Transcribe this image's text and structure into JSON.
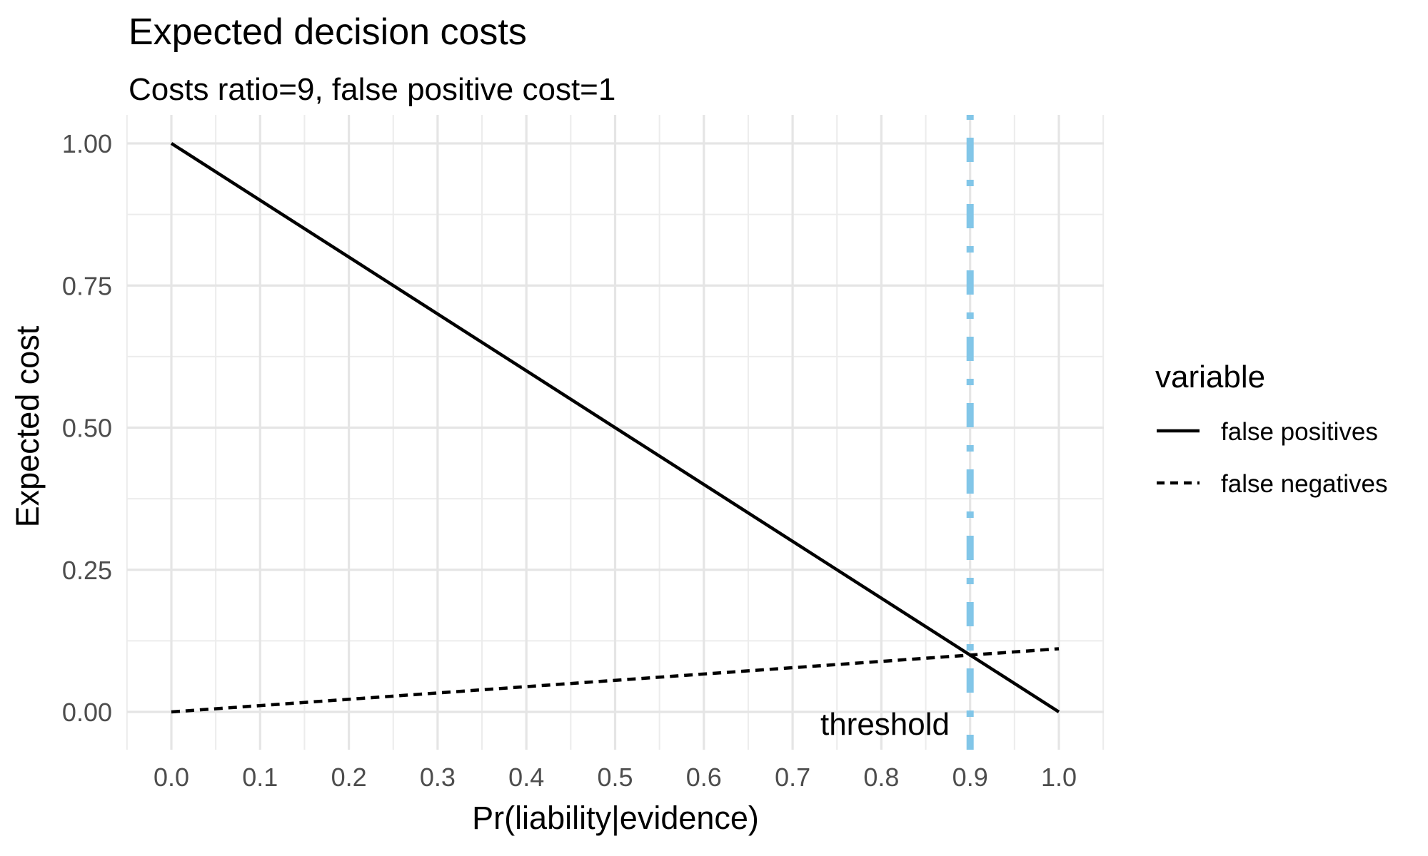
{
  "colors": {
    "series_line": "#000000",
    "threshold_line": "#82C6E8",
    "grid_major": "#E5E5E5",
    "grid_minor": "#ECECEC",
    "tick_text": "#4D4D4D",
    "title_text": "#000000",
    "background": "#FFFFFF"
  },
  "chart_data": {
    "type": "line",
    "title": "Expected decision costs",
    "subtitle": "Costs ratio=9, false positive cost=1",
    "xlabel": "Pr(liability|evidence)",
    "ylabel": "Expected cost",
    "xlim": [
      -0.05,
      1.05
    ],
    "ylim": [
      -0.065,
      1.05
    ],
    "grid": "major and minor, light gray on white (ggplot theme_minimal)",
    "x_ticks": {
      "values": [
        0.0,
        0.1,
        0.2,
        0.3,
        0.4,
        0.5,
        0.6,
        0.7,
        0.8,
        0.9,
        1.0
      ],
      "labels": [
        "0.0",
        "0.1",
        "0.2",
        "0.3",
        "0.4",
        "0.5",
        "0.6",
        "0.7",
        "0.8",
        "0.9",
        "1.0"
      ]
    },
    "y_ticks": {
      "values": [
        0.0,
        0.25,
        0.5,
        0.75,
        1.0
      ],
      "labels": [
        "0.00",
        "0.25",
        "0.50",
        "0.75",
        "1.00"
      ]
    },
    "legend_title": "variable",
    "legend_position": "right",
    "series": [
      {
        "name": "false positives",
        "style": "solid",
        "color": "#000000",
        "points": [
          [
            0.0,
            1.0
          ],
          [
            1.0,
            0.0
          ]
        ]
      },
      {
        "name": "false negatives",
        "style": "dashed",
        "color": "#000000",
        "points": [
          [
            0.0,
            0.0
          ],
          [
            1.0,
            0.1111
          ]
        ]
      }
    ],
    "annotations": [
      {
        "type": "vline",
        "x": 0.9,
        "label": "threshold",
        "style": "dashdot",
        "color": "#82C6E8"
      }
    ]
  }
}
